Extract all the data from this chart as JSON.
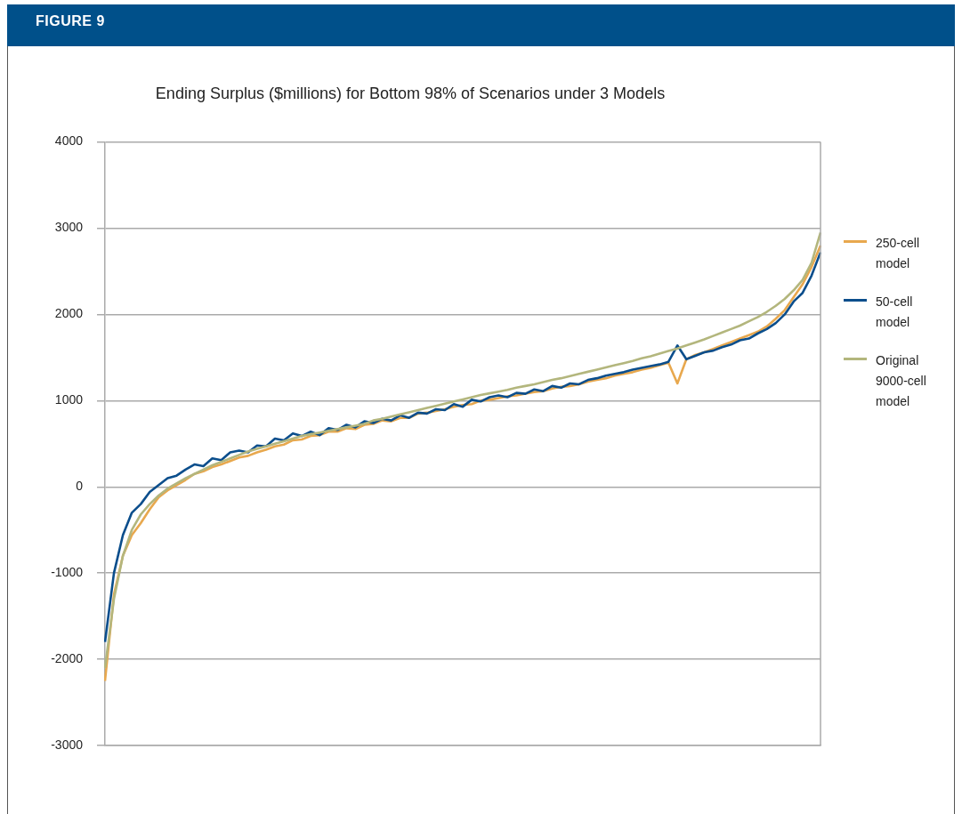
{
  "chart_data": {
    "type": "line",
    "title": "Ending Surplus ($millions) for Bottom 98% of Scenarios under 3 Models",
    "annotations": [
      "FIGURE 9"
    ],
    "categories": [
      null,
      null,
      null,
      null,
      null,
      null,
      null,
      null,
      null,
      null,
      null,
      null,
      null,
      null,
      null,
      null,
      null,
      null,
      null,
      null,
      null,
      null,
      null,
      null,
      null,
      null,
      null,
      null,
      null,
      null,
      null,
      null,
      null,
      null,
      null,
      null,
      null,
      null,
      null,
      null,
      null,
      null,
      null,
      null,
      null,
      null,
      null,
      null,
      null,
      null,
      null,
      null,
      null,
      null,
      null,
      null,
      null,
      null,
      null,
      null,
      null,
      null,
      null,
      null,
      null,
      null,
      null,
      null,
      null,
      null,
      null,
      null,
      null,
      null,
      null,
      null,
      null,
      null,
      null,
      null,
      null
    ],
    "series": [
      {
        "name": "250-cell model",
        "color": "#e8a84e",
        "values": [
          -2250,
          -1250,
          -800,
          -560,
          -420,
          -260,
          -120,
          -40,
          20,
          80,
          150,
          180,
          230,
          260,
          300,
          340,
          360,
          400,
          430,
          470,
          490,
          540,
          550,
          590,
          600,
          640,
          640,
          680,
          670,
          720,
          730,
          770,
          760,
          800,
          800,
          850,
          860,
          880,
          900,
          930,
          950,
          960,
          1000,
          1010,
          1030,
          1050,
          1060,
          1080,
          1100,
          1110,
          1140,
          1160,
          1170,
          1190,
          1220,
          1240,
          1260,
          1290,
          1310,
          1330,
          1360,
          1380,
          1410,
          1440,
          1200,
          1480,
          1530,
          1560,
          1600,
          1640,
          1680,
          1720,
          1760,
          1800,
          1860,
          1950,
          2050,
          2200,
          2350,
          2550,
          2800
        ]
      },
      {
        "name": "50-cell model",
        "color": "#0b4e8c",
        "values": [
          -1800,
          -1000,
          -560,
          -300,
          -200,
          -60,
          20,
          100,
          130,
          200,
          260,
          240,
          330,
          310,
          400,
          420,
          400,
          480,
          470,
          560,
          540,
          620,
          590,
          640,
          600,
          680,
          660,
          720,
          690,
          760,
          740,
          790,
          770,
          830,
          800,
          860,
          850,
          900,
          890,
          960,
          930,
          1010,
          990,
          1040,
          1060,
          1040,
          1090,
          1080,
          1130,
          1110,
          1170,
          1150,
          1200,
          1190,
          1240,
          1260,
          1290,
          1310,
          1330,
          1360,
          1380,
          1400,
          1420,
          1450,
          1640,
          1480,
          1520,
          1560,
          1580,
          1620,
          1650,
          1700,
          1720,
          1780,
          1830,
          1900,
          2000,
          2150,
          2250,
          2450,
          2720
        ]
      },
      {
        "name": "Original 9000-cell model",
        "color": "#b3b67d",
        "values": [
          -2100,
          -1300,
          -800,
          -500,
          -320,
          -200,
          -100,
          -20,
          40,
          100,
          150,
          200,
          250,
          290,
          330,
          370,
          410,
          440,
          470,
          500,
          530,
          560,
          590,
          610,
          630,
          650,
          670,
          690,
          710,
          730,
          770,
          790,
          815,
          840,
          865,
          890,
          915,
          940,
          965,
          990,
          1015,
          1040,
          1065,
          1085,
          1105,
          1125,
          1150,
          1170,
          1190,
          1215,
          1240,
          1260,
          1285,
          1310,
          1335,
          1360,
          1385,
          1410,
          1435,
          1460,
          1490,
          1515,
          1545,
          1575,
          1605,
          1640,
          1675,
          1710,
          1750,
          1790,
          1830,
          1870,
          1920,
          1970,
          2030,
          2100,
          2180,
          2280,
          2400,
          2600,
          2950
        ]
      }
    ],
    "ylim": [
      -3000,
      4000
    ],
    "yticks": [
      -3000,
      -2000,
      -1000,
      0,
      1000,
      2000,
      3000,
      4000
    ],
    "grid": "y",
    "legend": "right",
    "tick_labels": "y",
    "marker": "none",
    "line_style": "solid"
  }
}
